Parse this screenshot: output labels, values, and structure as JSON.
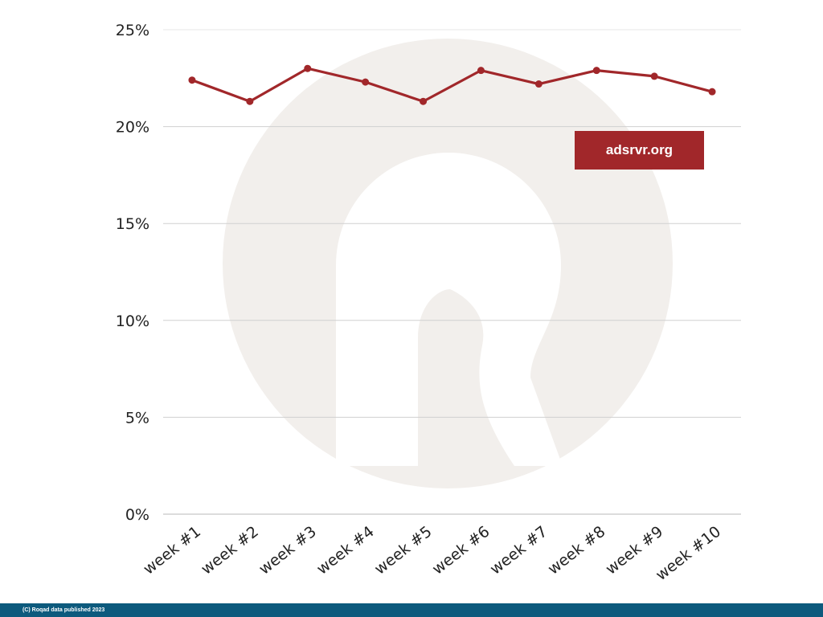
{
  "chart_data": {
    "type": "line",
    "categories": [
      "week #1",
      "week #2",
      "week #3",
      "week #4",
      "week #5",
      "week #6",
      "week #7",
      "week #8",
      "week #9",
      "week #10"
    ],
    "series": [
      {
        "name": "adsrvr.org",
        "values": [
          22.4,
          21.3,
          23.0,
          22.3,
          21.3,
          22.9,
          22.2,
          22.9,
          22.6,
          21.8
        ],
        "color": "#a1272a"
      }
    ],
    "y_tick_labels": [
      "0%",
      "5%",
      "10%",
      "15%",
      "20%",
      "25%"
    ],
    "ylim": [
      0,
      25
    ],
    "y_ticks": [
      0,
      5,
      10,
      15,
      20,
      25
    ],
    "grid": true,
    "legend_position": "top-right"
  },
  "colors": {
    "gridline": "#d0d0d0",
    "watermark": "#f2efec",
    "footer_bg": "#0d5a7d"
  },
  "footer": {
    "text": "(C) Roqad data published 2023"
  }
}
